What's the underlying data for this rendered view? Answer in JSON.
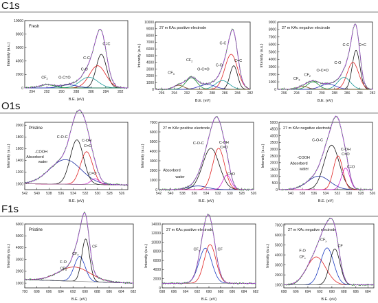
{
  "sections": [
    {
      "label": "C1s"
    },
    {
      "label": "O1s"
    },
    {
      "label": "F1s"
    }
  ],
  "colors": {
    "measured": "#2f8f2f",
    "envelope": "#b040e0",
    "c_c": "#e02020",
    "c_eq_c": "#111111",
    "c_o": "#1a9a9a",
    "o_c_eq_o": "#2a2ac0",
    "cf2_small": "#7a4a1a",
    "cf_comp": "#1a8a3a",
    "baseline": "#7a7a7a",
    "o_cooh": "#1a2aa0",
    "o_coc": "#111111",
    "o_coh": "#e02020",
    "o_co": "#d020d0",
    "f_cf": "#111111",
    "f_cfx": "#1a3ac0",
    "f_fo": "#e02020"
  },
  "chart_data": [
    {
      "id": "c1s-fresh",
      "type": "line",
      "inline_label": "Fresh",
      "xlabel": "B.E. (eV)",
      "ylabel": "Intensity (a.u.)",
      "xlim": [
        295,
        281
      ],
      "ylim": [
        0,
        10000
      ],
      "xticks": [
        "294",
        "292",
        "290",
        "288",
        "286",
        "284",
        "282"
      ],
      "yticks": [
        "0",
        "2000",
        "4000",
        "6000",
        "8000",
        "10000"
      ],
      "components": [
        {
          "color": "c_eq_c",
          "type": "gauss",
          "center": 284.6,
          "height": 5000,
          "width": 0.7
        },
        {
          "color": "c_c",
          "type": "gauss",
          "center": 285.1,
          "height": 3300,
          "width": 1.1
        },
        {
          "color": "c_o",
          "type": "gauss",
          "center": 286.3,
          "height": 1600,
          "width": 1.2
        },
        {
          "color": "o_c_eq_o",
          "type": "gauss",
          "center": 289.0,
          "height": 450,
          "width": 1.2
        },
        {
          "color": "cf_comp",
          "type": "gauss",
          "center": 292.0,
          "height": 500,
          "width": 1.0
        }
      ],
      "annotations": [
        {
          "text": "CF",
          "sub": "2",
          "x": 292.3,
          "y": 1400
        },
        {
          "text": "O-C=O",
          "x": 289.6,
          "y": 1400
        },
        {
          "text": "C-O",
          "x": 286.9,
          "y": 2600
        },
        {
          "text": "C-C",
          "x": 286.6,
          "y": 4300
        },
        {
          "text": "C=C",
          "x": 283.9,
          "y": 6400
        }
      ]
    },
    {
      "id": "c1s-positive",
      "type": "line",
      "inline_label": "27 m KAc positive electrode",
      "xlabel": "B.E. (eV)",
      "ylabel": "Intensity (a.u.)",
      "xlim": [
        297,
        282
      ],
      "ylim": [
        0,
        10000
      ],
      "xticks": [
        "296",
        "294",
        "292",
        "290",
        "288",
        "286",
        "284",
        "282"
      ],
      "yticks": [
        "0",
        "1000",
        "2000",
        "3000",
        "4000",
        "5000",
        "6000",
        "7000",
        "8000",
        "9000",
        "10000"
      ],
      "components": [
        {
          "color": "c_eq_c",
          "type": "gauss",
          "center": 284.6,
          "height": 3500,
          "width": 0.6
        },
        {
          "color": "c_c",
          "type": "gauss",
          "center": 285.0,
          "height": 5200,
          "width": 1.0
        },
        {
          "color": "c_o",
          "type": "gauss",
          "center": 286.4,
          "height": 1300,
          "width": 1.1
        },
        {
          "color": "o_c_eq_o",
          "type": "gauss",
          "center": 288.8,
          "height": 700,
          "width": 1.3
        },
        {
          "color": "cf_comp",
          "type": "gauss",
          "center": 291.3,
          "height": 1700,
          "width": 0.9
        },
        {
          "color": "cf2_small",
          "type": "gauss",
          "center": 293.3,
          "height": 600,
          "width": 0.8
        }
      ],
      "annotations": [
        {
          "text": "CF",
          "sub": "3",
          "x": 294.5,
          "y": 2300
        },
        {
          "text": "CF",
          "sub": "2",
          "x": 291.6,
          "y": 4200
        },
        {
          "text": "O-C=O",
          "x": 289.4,
          "y": 2800
        },
        {
          "text": "C-O",
          "x": 286.9,
          "y": 3400
        },
        {
          "text": "C-C",
          "x": 286.3,
          "y": 6700
        },
        {
          "text": "C=C",
          "x": 283.9,
          "y": 4100
        }
      ]
    },
    {
      "id": "c1s-negative",
      "type": "line",
      "inline_label": "27 m KAc negative electrode",
      "xlabel": "B.E. (eV)",
      "ylabel": "Intensity (a.u.)",
      "xlim": [
        297,
        282
      ],
      "ylim": [
        0,
        9000
      ],
      "xticks": [
        "296",
        "294",
        "292",
        "290",
        "288",
        "286",
        "284",
        "282"
      ],
      "yticks": [
        "0",
        "1000",
        "2000",
        "3000",
        "4000",
        "5000",
        "6000",
        "7000",
        "8000",
        "9000"
      ],
      "components": [
        {
          "color": "c_eq_c",
          "type": "gauss",
          "center": 284.6,
          "height": 5200,
          "width": 0.6
        },
        {
          "color": "c_c",
          "type": "gauss",
          "center": 285.1,
          "height": 3600,
          "width": 0.9
        },
        {
          "color": "c_o",
          "type": "gauss",
          "center": 286.5,
          "height": 1600,
          "width": 1.0
        },
        {
          "color": "o_c_eq_o",
          "type": "gauss",
          "center": 289.0,
          "height": 700,
          "width": 1.2
        },
        {
          "color": "cf_comp",
          "type": "gauss",
          "center": 291.4,
          "height": 1000,
          "width": 0.9
        },
        {
          "color": "cf2_small",
          "type": "gauss",
          "center": 293.0,
          "height": 400,
          "width": 0.8
        }
      ],
      "annotations": [
        {
          "text": "CF",
          "sub": "3",
          "x": 294.0,
          "y": 1300
        },
        {
          "text": "CF",
          "sub": "2",
          "x": 292.3,
          "y": 1800
        },
        {
          "text": "O-C=O",
          "x": 289.9,
          "y": 2400
        },
        {
          "text": "C-O",
          "x": 287.5,
          "y": 3400
        },
        {
          "text": "C-C",
          "x": 286.2,
          "y": 5800
        },
        {
          "text": "C=C",
          "x": 283.6,
          "y": 5800
        }
      ]
    },
    {
      "id": "o1s-pristine",
      "type": "line",
      "inline_label": "Pristine",
      "xlabel": "B.E. (eV)",
      "ylabel": "Intensity (a.u.)",
      "xlim": [
        542,
        525
      ],
      "ylim": [
        900,
        2050
      ],
      "xticks": [
        "542",
        "540",
        "538",
        "536",
        "534",
        "532",
        "530",
        "528",
        "526"
      ],
      "yticks": [
        "1000",
        "1200",
        "1400",
        "1600",
        "1800",
        "2000"
      ],
      "baseline": [
        980,
        1000
      ],
      "components": [
        {
          "color": "o_cooh",
          "type": "gauss",
          "center": 535.3,
          "height": 420,
          "width": 2.6
        },
        {
          "color": "o_coc",
          "type": "gauss",
          "center": 533.4,
          "height": 760,
          "width": 1.1
        },
        {
          "color": "o_coh",
          "type": "gauss",
          "center": 531.8,
          "height": 560,
          "width": 1.0
        },
        {
          "color": "o_co",
          "type": "gauss",
          "center": 530.4,
          "height": 100,
          "width": 0.7
        }
      ],
      "annotations": [
        {
          "text": "C-O-C",
          "x": 535.8,
          "y": 1780
        },
        {
          "text": "C-OH",
          "x": 531.8,
          "y": 1720
        },
        {
          "text": "C=O",
          "x": 531.6,
          "y": 1630
        },
        {
          "text": "-COOH",
          "x": 539.3,
          "y": 1530
        },
        {
          "text": "Absorberd",
          "x": 540.3,
          "y": 1440
        },
        {
          "text": "water",
          "x": 539.0,
          "y": 1360
        },
        {
          "text": "C=O",
          "x": 530.8,
          "y": 1160
        }
      ]
    },
    {
      "id": "o1s-positive",
      "type": "line",
      "inline_label": "27 m KAc positive electrode",
      "xlabel": "B.E. (eV)",
      "ylabel": "Intensity (a.u.)",
      "xlim": [
        542,
        526
      ],
      "ylim": [
        0,
        7000
      ],
      "xticks": [
        "542",
        "540",
        "538",
        "536",
        "534",
        "532",
        "530",
        "528",
        "526"
      ],
      "yticks": [
        "0",
        "1000",
        "2000",
        "3000",
        "4000",
        "5000",
        "6000",
        "7000"
      ],
      "components": [
        {
          "color": "o_cooh",
          "type": "gauss",
          "center": 535.4,
          "height": 380,
          "width": 1.6
        },
        {
          "color": "o_coc",
          "type": "gauss",
          "center": 533.2,
          "height": 4300,
          "width": 1.4
        },
        {
          "color": "o_coh",
          "type": "gauss",
          "center": 531.9,
          "height": 4300,
          "width": 1.0
        },
        {
          "color": "o_co",
          "type": "gauss",
          "center": 530.5,
          "height": 1500,
          "width": 0.7
        }
      ],
      "annotations": [
        {
          "text": "C-O-C",
          "x": 535.3,
          "y": 4700
        },
        {
          "text": "C-OH",
          "x": 531.0,
          "y": 4800
        },
        {
          "text": "C=O",
          "x": 531.0,
          "y": 4300
        },
        {
          "text": "Absorberd",
          "x": 539.8,
          "y": 1900
        },
        {
          "text": "water",
          "x": 538.4,
          "y": 1200
        },
        {
          "text": "C=O",
          "x": 529.8,
          "y": 1500
        }
      ]
    },
    {
      "id": "o1s-negative",
      "type": "line",
      "inline_label": "27 m KAc negative electrode",
      "xlabel": "B.E. (eV)",
      "ylabel": "Intensity (a.u.)",
      "xlim": [
        542,
        526
      ],
      "ylim": [
        0,
        5000
      ],
      "xticks": [
        "540",
        "538",
        "536",
        "534",
        "532",
        "530",
        "528",
        "526"
      ],
      "yticks": [
        "0",
        "500",
        "1000",
        "1500",
        "2000",
        "2500",
        "3000",
        "3500",
        "4000",
        "4500",
        "5000"
      ],
      "components": [
        {
          "color": "o_cooh",
          "type": "gauss",
          "center": 535.2,
          "height": 1000,
          "width": 1.9
        },
        {
          "color": "o_coc",
          "type": "gauss",
          "center": 533.0,
          "height": 3300,
          "width": 1.3
        },
        {
          "color": "o_coh",
          "type": "gauss",
          "center": 531.9,
          "height": 2500,
          "width": 0.8
        },
        {
          "color": "o_co",
          "type": "gauss",
          "center": 530.6,
          "height": 1600,
          "width": 0.7
        }
      ],
      "annotations": [
        {
          "text": "C-O-C",
          "x": 535.4,
          "y": 3600
        },
        {
          "text": "C-OH",
          "x": 530.6,
          "y": 2900
        },
        {
          "text": "C=O",
          "x": 530.6,
          "y": 2550
        },
        {
          "text": "-COOH",
          "x": 537.8,
          "y": 2300
        },
        {
          "text": "Absorberd",
          "x": 538.6,
          "y": 1850
        },
        {
          "text": "water",
          "x": 537.7,
          "y": 1450
        },
        {
          "text": "C=O",
          "x": 529.7,
          "y": 1600
        }
      ]
    },
    {
      "id": "f1s-pristine",
      "type": "line",
      "inline_label": "Pristine",
      "xlabel": "B.E. (eV)",
      "ylabel": "Intensity (a.u.)",
      "xlim": [
        700,
        682
      ],
      "ylim": [
        600,
        6000
      ],
      "xticks": [
        "700",
        "698",
        "696",
        "694",
        "692",
        "690",
        "688",
        "686",
        "684",
        "682"
      ],
      "yticks": [
        "1000",
        "2000",
        "3000",
        "4000",
        "5000",
        "6000"
      ],
      "baseline": [
        1000,
        1300
      ],
      "components": [
        {
          "color": "f_fo",
          "type": "gauss",
          "center": 691.8,
          "height": 1200,
          "width": 2.6
        },
        {
          "color": "f_cfx",
          "type": "gauss",
          "center": 690.9,
          "height": 2100,
          "width": 0.9
        },
        {
          "color": "f_cf",
          "type": "gauss",
          "center": 689.9,
          "height": 3600,
          "width": 0.65
        }
      ],
      "annotations": [
        {
          "text": "CF",
          "x": 688.4,
          "y": 4000
        },
        {
          "text": "CF",
          "sub": "2",
          "x": 691.6,
          "y": 3400
        },
        {
          "text": "F-O",
          "x": 693.6,
          "y": 2700
        },
        {
          "text": "CF",
          "sub": "3",
          "x": 693.6,
          "y": 2150
        }
      ]
    },
    {
      "id": "f1s-positive",
      "type": "line",
      "inline_label": "27 m KAc positive electrode",
      "xlabel": "B.E. (eV)",
      "ylabel": "Intensity (a.u.)",
      "xlim": [
        698,
        682
      ],
      "ylim": [
        0,
        14000
      ],
      "xticks": [
        "698",
        "696",
        "694",
        "692",
        "690",
        "688",
        "686",
        "684",
        "682"
      ],
      "yticks": [
        "0",
        "2000",
        "4000",
        "6000",
        "8000",
        "10000",
        "12000",
        "14000"
      ],
      "baseline": [
        1000,
        1000
      ],
      "components": [
        {
          "color": "f_cfx",
          "type": "gauss",
          "center": 690.6,
          "height": 7700,
          "width": 1.1
        },
        {
          "color": "f_fo",
          "type": "gauss",
          "center": 689.8,
          "height": 8500,
          "width": 1.0
        }
      ],
      "annotations": [
        {
          "text": "CF",
          "sub": "x",
          "x": 692.1,
          "y": 8200
        },
        {
          "text": "CF",
          "x": 688.1,
          "y": 8200
        }
      ]
    },
    {
      "id": "f1s-negative",
      "type": "line",
      "inline_label": "27 m KAc negative electrode",
      "xlabel": "B.E. (eV)",
      "ylabel": "Intensity (a.u.)",
      "xlim": [
        698,
        683
      ],
      "ylim": [
        700,
        7100
      ],
      "xticks": [
        "698",
        "696",
        "694",
        "692",
        "690",
        "688",
        "686",
        "684"
      ],
      "yticks": [
        "1000",
        "2000",
        "3000",
        "4000",
        "5000",
        "6000",
        "7000"
      ],
      "baseline": [
        1000,
        1000
      ],
      "components": [
        {
          "color": "f_fo",
          "type": "gauss",
          "center": 692.6,
          "height": 2800,
          "width": 1.6
        },
        {
          "color": "f_cfx",
          "type": "gauss",
          "center": 690.8,
          "height": 3700,
          "width": 1.1
        },
        {
          "color": "f_cf",
          "type": "gauss",
          "center": 689.5,
          "height": 3600,
          "width": 0.85
        }
      ],
      "annotations": [
        {
          "text": "CF",
          "x": 688.6,
          "y": 4800
        },
        {
          "text": "CF",
          "sub": "x",
          "x": 691.4,
          "y": 5400
        },
        {
          "text": "F-O",
          "x": 694.9,
          "y": 4300
        },
        {
          "text": "CF",
          "sub": "x",
          "x": 694.9,
          "y": 3700
        }
      ]
    }
  ]
}
